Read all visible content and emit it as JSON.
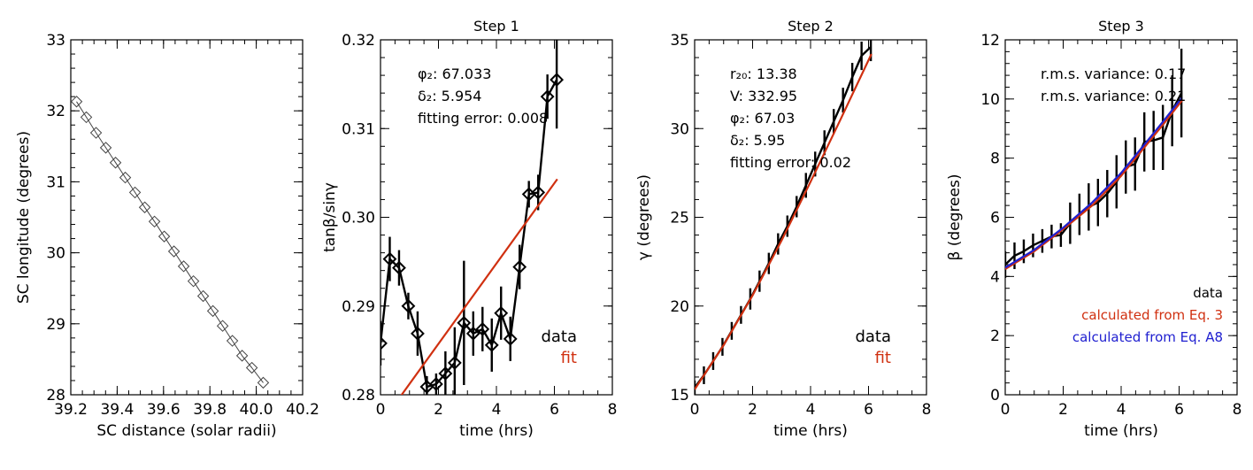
{
  "chart_data": [
    {
      "id": "p1",
      "type": "scatter",
      "title": "",
      "xlabel": "SC distance (solar radii)",
      "ylabel": "SC longitude (degrees)",
      "xlim": [
        39.2,
        40.2
      ],
      "ylim": [
        28,
        33
      ],
      "xticks": [
        39.2,
        39.4,
        39.6,
        39.8,
        40.0,
        40.2
      ],
      "xtick_labels": [
        "39.2",
        "39.4",
        "39.6",
        "39.8",
        "40.0",
        "40.2"
      ],
      "yticks": [
        28,
        29,
        30,
        31,
        32,
        33
      ],
      "ytick_labels": [
        "28",
        "29",
        "30",
        "31",
        "32",
        "33"
      ],
      "series": [
        {
          "name": "spacecraft",
          "color": "#444444",
          "marker": "diamond",
          "x": [
            39.225,
            39.267,
            39.309,
            39.351,
            39.393,
            39.435,
            39.477,
            39.519,
            39.561,
            39.603,
            39.645,
            39.687,
            39.729,
            39.771,
            39.813,
            39.855,
            39.897,
            39.939,
            39.981,
            40.03
          ],
          "y": [
            32.13,
            31.91,
            31.69,
            31.48,
            31.27,
            31.06,
            30.85,
            30.64,
            30.44,
            30.23,
            30.02,
            29.81,
            29.6,
            29.39,
            29.18,
            28.97,
            28.76,
            28.55,
            28.38,
            28.17
          ]
        }
      ]
    },
    {
      "id": "p2",
      "type": "line",
      "title": "Step 1",
      "xlabel": "time (hrs)",
      "ylabel": "tanβ/sinγ",
      "xlim": [
        0,
        8
      ],
      "ylim": [
        0.28,
        0.32
      ],
      "xticks": [
        0,
        2,
        4,
        6,
        8
      ],
      "xtick_labels": [
        "0",
        "2",
        "4",
        "6",
        "8"
      ],
      "yticks": [
        0.28,
        0.29,
        0.3,
        0.31,
        0.32
      ],
      "ytick_labels": [
        "0.28",
        "0.29",
        "0.30",
        "0.31",
        "0.32"
      ],
      "annotations": [
        {
          "lines": [
            "φ₂:  67.033",
            "δ₂:  5.954",
            "fitting error: 0.008"
          ]
        }
      ],
      "legend": [
        {
          "label": "data",
          "color": "#000000"
        },
        {
          "label": "fit",
          "color": "#d03010"
        }
      ],
      "series": [
        {
          "name": "data",
          "color": "#000000",
          "marker": "diamond",
          "x": [
            0.0,
            0.32,
            0.64,
            0.96,
            1.28,
            1.6,
            1.92,
            2.24,
            2.56,
            2.88,
            3.2,
            3.52,
            3.84,
            4.16,
            4.48,
            4.8,
            5.12,
            5.44,
            5.76,
            6.08
          ],
          "y": [
            0.2858,
            0.2953,
            0.2943,
            0.29,
            0.2869,
            0.2809,
            0.2812,
            0.2824,
            0.2836,
            0.2881,
            0.2869,
            0.2874,
            0.2856,
            0.2892,
            0.2863,
            0.2944,
            0.3026,
            0.3028,
            0.3136,
            0.3155
          ],
          "err": [
            0.0025,
            0.0025,
            0.002,
            0.0015,
            0.0025,
            0.0012,
            0.0012,
            0.0025,
            0.004,
            0.007,
            0.0025,
            0.0025,
            0.003,
            0.003,
            0.0025,
            0.0025,
            0.0015,
            0.002,
            0.0025,
            0.0055
          ]
        },
        {
          "name": "fit",
          "color": "#d03010",
          "x": [
            0.6,
            6.1
          ],
          "y": [
            0.2794,
            0.3043
          ]
        }
      ]
    },
    {
      "id": "p3",
      "type": "line",
      "title": "Step 2",
      "xlabel": "time (hrs)",
      "ylabel": "γ (degrees)",
      "xlim": [
        0,
        8
      ],
      "ylim": [
        15,
        35
      ],
      "xticks": [
        0,
        2,
        4,
        6,
        8
      ],
      "xtick_labels": [
        "0",
        "2",
        "4",
        "6",
        "8"
      ],
      "yticks": [
        15,
        20,
        25,
        30,
        35
      ],
      "ytick_labels": [
        "15",
        "20",
        "25",
        "30",
        "35"
      ],
      "annotations": [
        {
          "lines": [
            "r₂₀:  13.38",
            "V:  332.95",
            "φ₂:  67.03",
            "δ₂:  5.95",
            "fitting error: 0.02"
          ]
        }
      ],
      "legend": [
        {
          "label": "data",
          "color": "#000000"
        },
        {
          "label": "fit",
          "color": "#d03010"
        }
      ],
      "series": [
        {
          "name": "data",
          "color": "#000000",
          "x": [
            0.0,
            0.32,
            0.64,
            0.96,
            1.28,
            1.6,
            1.92,
            2.24,
            2.56,
            2.88,
            3.2,
            3.52,
            3.84,
            4.16,
            4.48,
            4.8,
            5.12,
            5.44,
            5.76,
            6.08
          ],
          "y": [
            15.4,
            16.1,
            16.9,
            17.7,
            18.6,
            19.5,
            20.4,
            21.4,
            22.4,
            23.5,
            24.5,
            25.6,
            26.8,
            28.0,
            29.2,
            30.4,
            31.6,
            32.9,
            34.1,
            34.6
          ],
          "err": [
            0.4,
            0.5,
            0.5,
            0.5,
            0.5,
            0.5,
            0.6,
            0.6,
            0.6,
            0.6,
            0.6,
            0.6,
            0.7,
            0.7,
            0.7,
            0.7,
            0.7,
            0.8,
            0.8,
            0.8
          ]
        },
        {
          "name": "fit",
          "color": "#d03010",
          "x": [
            0.0,
            1.0,
            2.0,
            3.0,
            4.0,
            5.0,
            6.1
          ],
          "y": [
            15.3,
            17.8,
            20.6,
            23.7,
            27.0,
            30.4,
            34.2
          ]
        }
      ]
    },
    {
      "id": "p4",
      "type": "line",
      "title": "Step 3",
      "xlabel": "time (hrs)",
      "ylabel": "β (degrees)",
      "xlim": [
        0,
        8
      ],
      "ylim": [
        0,
        12
      ],
      "xticks": [
        0,
        2,
        4,
        6,
        8
      ],
      "xtick_labels": [
        "0",
        "2",
        "4",
        "6",
        "8"
      ],
      "yticks": [
        0,
        2,
        4,
        6,
        8,
        10,
        12
      ],
      "ytick_labels": [
        "0",
        "2",
        "4",
        "6",
        "8",
        "10",
        "12"
      ],
      "annotations": [
        {
          "text": "r.m.s. variance: 0.17",
          "color": "#d03010"
        },
        {
          "text": "r.m.s. variance: 0.21",
          "color": "#2020d0"
        }
      ],
      "legend": [
        {
          "label": "data",
          "color": "#000000"
        },
        {
          "label": "calculated from Eq. 3",
          "color": "#d03010"
        },
        {
          "label": "calculated from Eq. A8",
          "color": "#2020d0"
        }
      ],
      "series": [
        {
          "name": "data",
          "color": "#000000",
          "x": [
            0.0,
            0.32,
            0.64,
            0.96,
            1.28,
            1.6,
            1.92,
            2.24,
            2.56,
            2.88,
            3.2,
            3.52,
            3.84,
            4.16,
            4.48,
            4.8,
            5.12,
            5.44,
            5.76,
            6.08
          ],
          "y": [
            4.4,
            4.7,
            4.85,
            5.05,
            5.2,
            5.35,
            5.4,
            5.8,
            6.1,
            6.35,
            6.5,
            6.8,
            7.2,
            7.7,
            7.8,
            8.55,
            8.6,
            8.7,
            9.6,
            10.2
          ],
          "err": [
            0.45,
            0.45,
            0.4,
            0.4,
            0.4,
            0.4,
            0.4,
            0.7,
            0.7,
            0.8,
            0.8,
            0.8,
            0.9,
            0.9,
            0.9,
            1.0,
            1.0,
            1.1,
            1.2,
            1.5
          ]
        },
        {
          "name": "calculated from Eq. 3",
          "color": "#d03010",
          "x": [
            0.0,
            1.0,
            2.0,
            3.0,
            4.0,
            5.0,
            5.5,
            6.1
          ],
          "y": [
            4.25,
            4.85,
            5.6,
            6.4,
            7.4,
            8.6,
            9.2,
            9.95
          ]
        },
        {
          "name": "calculated from Eq. A8",
          "color": "#2020d0",
          "x": [
            0.0,
            1.0,
            2.0,
            3.0,
            4.0,
            5.0,
            5.5,
            6.1
          ],
          "y": [
            4.3,
            4.9,
            5.65,
            6.5,
            7.5,
            8.7,
            9.3,
            10.05
          ]
        }
      ]
    }
  ]
}
